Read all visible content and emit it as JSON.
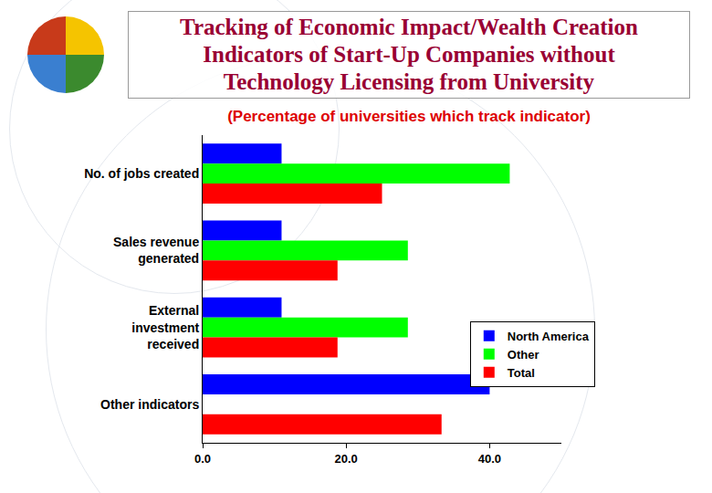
{
  "chart_data": {
    "type": "bar",
    "orientation": "horizontal",
    "title": "Tracking of Economic Impact/Wealth Creation Indicators of Start-Up Companies without Technology Licensing from University",
    "subtitle": "(Percentage of universities which track indicator)",
    "categories": [
      "No. of jobs created",
      "Sales revenue generated",
      "External investment received",
      "Other indicators"
    ],
    "series": [
      {
        "name": "North America",
        "color": "#0000ff",
        "values": [
          11,
          11,
          11,
          40
        ]
      },
      {
        "name": "Other",
        "color": "#00ff00",
        "values": [
          42.8,
          28.6,
          28.6,
          null
        ]
      },
      {
        "name": "Total",
        "color": "#ff0000",
        "values": [
          25,
          18.8,
          18.8,
          33.3
        ]
      }
    ],
    "xlim": [
      0,
      50
    ],
    "xticks": [
      {
        "value": 0,
        "label": "0.0"
      },
      {
        "value": 20,
        "label": "20.0"
      },
      {
        "value": 40,
        "label": "40.0"
      }
    ],
    "grid": false,
    "legend": "right"
  }
}
